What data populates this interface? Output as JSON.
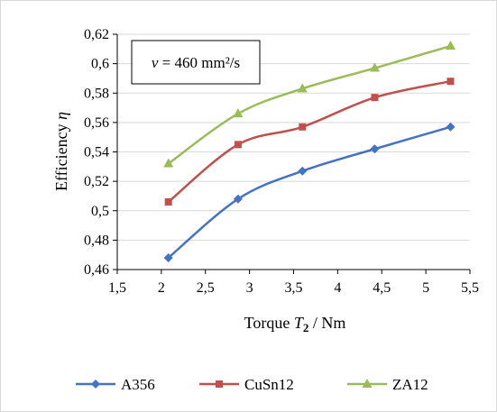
{
  "chart_data": {
    "type": "line",
    "xlabel": {
      "prefix": "Torque ",
      "symbol": "T",
      "subscript": "2",
      "suffix": " / Nm"
    },
    "ylabel": {
      "prefix": "Efficiency  ",
      "symbol": "η"
    },
    "xlim": [
      1.5,
      5.5
    ],
    "ylim": [
      0.46,
      0.62
    ],
    "x_ticks": [
      1.5,
      2,
      2.5,
      3,
      3.5,
      4,
      4.5,
      5,
      5.5
    ],
    "x_tick_labels": [
      "1,5",
      "2",
      "2,5",
      "3",
      "3,5",
      "4",
      "4,5",
      "5",
      "5,5"
    ],
    "y_ticks": [
      0.46,
      0.48,
      0.5,
      0.52,
      0.54,
      0.56,
      0.58,
      0.6,
      0.62
    ],
    "y_tick_labels": [
      "0,46",
      "0,48",
      "0,5",
      "0,52",
      "0,54",
      "0,56",
      "0,58",
      "0,6",
      "0,62"
    ],
    "grid": "horizontal",
    "legend_position": "bottom",
    "annotation": {
      "symbol": "ν",
      "text": " = 460 mm²/s"
    },
    "series": [
      {
        "name": "A356",
        "color": "#4472c4",
        "marker": "diamond",
        "x": [
          2.08,
          2.87,
          3.6,
          4.42,
          5.28
        ],
        "y": [
          0.468,
          0.508,
          0.527,
          0.542,
          0.557
        ]
      },
      {
        "name": "CuSn12",
        "color": "#c0504d",
        "marker": "square",
        "x": [
          2.08,
          2.87,
          3.6,
          4.42,
          5.28
        ],
        "y": [
          0.506,
          0.545,
          0.557,
          0.577,
          0.588
        ]
      },
      {
        "name": "ZA12",
        "color": "#9bbb59",
        "marker": "triangle",
        "x": [
          2.08,
          2.87,
          3.6,
          4.42,
          5.28
        ],
        "y": [
          0.532,
          0.566,
          0.583,
          0.597,
          0.612
        ]
      }
    ]
  }
}
